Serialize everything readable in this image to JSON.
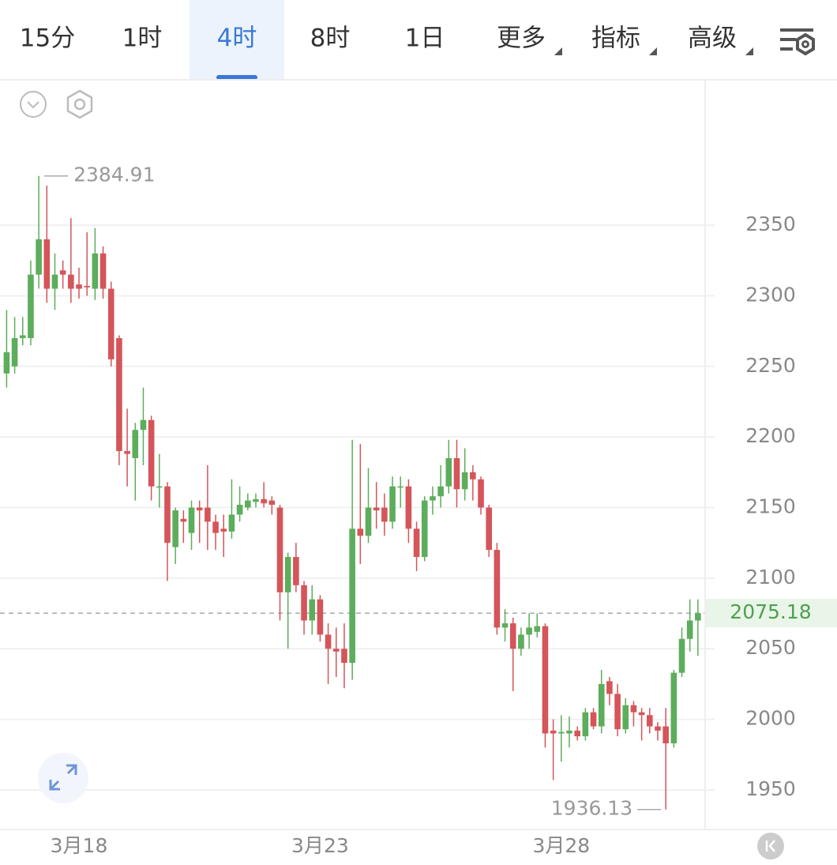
{
  "tabs": [
    "15分",
    "1时",
    "4时",
    "8时",
    "1日",
    "更多",
    "指标",
    "高级"
  ],
  "selected_tab": 2,
  "dropdown_tabs": [
    5,
    6,
    7
  ],
  "chart_data": {
    "type": "candlestick",
    "categories": [
      null,
      null,
      null,
      null,
      null,
      null,
      null,
      null,
      null,
      "3月18",
      null,
      null,
      null,
      null,
      null,
      null,
      null,
      null,
      null,
      null,
      null,
      null,
      null,
      null,
      null,
      null,
      null,
      null,
      null,
      null,
      null,
      null,
      null,
      null,
      null,
      null,
      null,
      null,
      null,
      "3月23",
      null,
      null,
      null,
      null,
      null,
      null,
      null,
      null,
      null,
      null,
      null,
      null,
      null,
      null,
      null,
      null,
      null,
      null,
      null,
      null,
      null,
      null,
      null,
      null,
      null,
      null,
      null,
      null,
      null,
      "3月28",
      null,
      null,
      null,
      null,
      null,
      null,
      null,
      null,
      null,
      null,
      null,
      null,
      null,
      null,
      null,
      null,
      null
    ],
    "open": [
      2245,
      2250,
      2270,
      2270,
      2315,
      2340,
      2305,
      2318,
      2315,
      2308,
      2307,
      2305,
      2330,
      2305,
      2270,
      2190,
      2185,
      2205,
      2212,
      2165,
      2165,
      2122,
      2142,
      2132,
      2150,
      2150,
      2140,
      2135,
      2133,
      2145,
      2150,
      2154,
      2156,
      2155,
      2150,
      2090,
      2115,
      2095,
      2070,
      2085,
      2060,
      2050,
      2050,
      2040,
      2135,
      2130,
      2150,
      2150,
      2140,
      2165,
      2165,
      2135,
      2115,
      2155,
      2158,
      2165,
      2185,
      2163,
      2175,
      2170,
      2150,
      2120,
      2065,
      2068,
      2050,
      2060,
      2062,
      2066,
      1992,
      1990,
      1990,
      1992,
      1988,
      2005,
      1995,
      2027,
      2018,
      1993,
      2010,
      2005,
      2003,
      1995,
      1995,
      1983,
      2033,
      2057,
      2070
    ],
    "high": [
      2290,
      2285,
      2285,
      2325,
      2384.91,
      2378,
      2330,
      2325,
      2355,
      2320,
      2345,
      2348,
      2335,
      2310,
      2272,
      2220,
      2210,
      2235,
      2215,
      2188,
      2168,
      2150,
      2148,
      2155,
      2155,
      2180,
      2145,
      2145,
      2170,
      2165,
      2160,
      2160,
      2168,
      2158,
      2152,
      2118,
      2125,
      2098,
      2095,
      2088,
      2068,
      2065,
      2068,
      2198,
      2195,
      2178,
      2168,
      2160,
      2172,
      2172,
      2170,
      2140,
      2158,
      2165,
      2180,
      2198,
      2198,
      2192,
      2180,
      2172,
      2152,
      2125,
      2078,
      2072,
      2065,
      2075,
      2075,
      2068,
      2000,
      2003,
      2002,
      1995,
      2008,
      2008,
      2035,
      2030,
      2025,
      2015,
      2013,
      2008,
      2008,
      1998,
      2008,
      2035,
      2065,
      2085,
      2085
    ],
    "low": [
      2235,
      2245,
      2265,
      2265,
      2305,
      2295,
      2290,
      2305,
      2295,
      2298,
      2300,
      2297,
      2298,
      2250,
      2180,
      2165,
      2155,
      2180,
      2155,
      2150,
      2098,
      2110,
      2125,
      2120,
      2125,
      2120,
      2120,
      2115,
      2128,
      2140,
      2148,
      2150,
      2150,
      2145,
      2070,
      2050,
      2090,
      2060,
      2060,
      2055,
      2025,
      2030,
      2022,
      2028,
      2110,
      2125,
      2135,
      2130,
      2135,
      2150,
      2125,
      2105,
      2112,
      2145,
      2150,
      2160,
      2150,
      2155,
      2155,
      2145,
      2115,
      2060,
      2055,
      2020,
      2045,
      2050,
      2058,
      1980,
      1957,
      1970,
      1980,
      1985,
      1985,
      1993,
      1990,
      2010,
      1988,
      1990,
      1995,
      1985,
      1990,
      1985,
      1936.13,
      1980,
      2030,
      2048,
      2045
    ],
    "close": [
      2260,
      2270,
      2272,
      2315,
      2340,
      2305,
      2315,
      2315,
      2305,
      2305,
      2306,
      2330,
      2305,
      2255,
      2190,
      2188,
      2205,
      2212,
      2165,
      2165,
      2125,
      2148,
      2140,
      2150,
      2148,
      2140,
      2132,
      2133,
      2145,
      2152,
      2155,
      2156,
      2153,
      2152,
      2090,
      2115,
      2095,
      2070,
      2085,
      2060,
      2050,
      2048,
      2040,
      2135,
      2130,
      2150,
      2148,
      2140,
      2165,
      2165,
      2135,
      2115,
      2155,
      2158,
      2165,
      2185,
      2163,
      2175,
      2170,
      2150,
      2120,
      2065,
      2068,
      2050,
      2060,
      2065,
      2066,
      1990,
      1990,
      1991,
      1992,
      1988,
      2005,
      1995,
      2025,
      2018,
      1993,
      2010,
      2005,
      2003,
      1995,
      1992,
      1983,
      2033,
      2057,
      2070,
      2075.18
    ],
    "up_color": "#5cad5c",
    "down_color": "#d4555a",
    "ylim": [
      1922,
      2453
    ],
    "yticks": [
      1950,
      2000,
      2050,
      2100,
      2150,
      2200,
      2250,
      2300,
      2350
    ],
    "grid": true,
    "last_price": 2075.18,
    "max_label": 2384.91,
    "min_label": 1936.13
  }
}
